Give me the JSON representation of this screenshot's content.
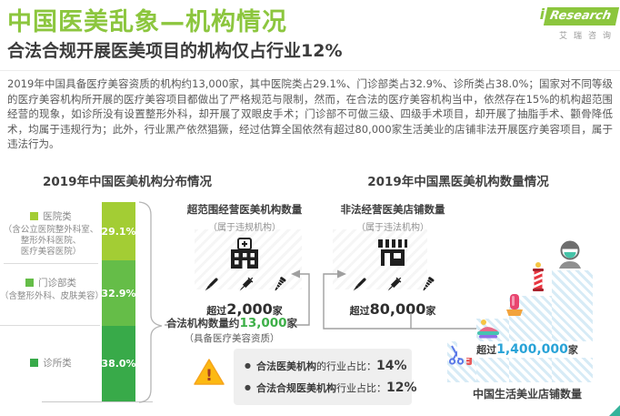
{
  "colors": {
    "accent_green": "#8cc63e",
    "highlight_green": "#3eb049",
    "highlight_blue": "#29a3d7",
    "connector_gray": "#9f9f9f",
    "warning_yellow": "#fcb912"
  },
  "header": {
    "title": "中国医美乱象—机构情况",
    "subtitle": "合法合规开展医美项目的机构仅占行业12%"
  },
  "logo": {
    "i": "i",
    "brand": "Research",
    "cn": "艾瑞咨询"
  },
  "intro": {
    "paragraph": "2019年中国具备医疗美容资质的机构约13,000家，其中医院类占29.1%、门诊部类占32.9%、诊所类占38.0%；国家对不同等级的医疗美容机构所开展的医疗美容项目都做出了严格规范与限制，然而，在合法的医疗美容机构当中，依然存在15%的机构超范围经营的现象，如诊所没有设置整形外科，却开展了双眼皮手术；门诊部不可做三级、四级手术项目，却开展了抽脂手术、颧骨降低术，均属于违规行为；此外，行业黑产依然猖獗，经过估算全国依然有超过80,000家生活美业的店铺非法开展医疗美容项目，属于违法行为。"
  },
  "left_section": {
    "heading": "2019年中国医美机构分布情况",
    "legend": [
      {
        "label": "医院类",
        "note": "（含公立医院整外科室、\n整形外科医院、\n医疗美容医院）"
      },
      {
        "label": "门诊部类",
        "note": "（含整形外科、皮肤美容）"
      },
      {
        "label": "诊所类",
        "note": ""
      }
    ],
    "legal_total": {
      "prefix": "合法机构数量约",
      "number": "13,000",
      "suffix": "家",
      "sub": "（具备医疗美容资质）"
    }
  },
  "middle_section": {
    "violation": {
      "title": "超范围经营医美机构数量",
      "sub": "（属于违规机构）",
      "count_prefix": "超过",
      "count": "2,000",
      "count_suffix": "家"
    },
    "illegal": {
      "title": "非法经营医美店铺数量",
      "sub": "（属于违法机构）",
      "count_prefix": "超过",
      "count": "80,000",
      "count_suffix": "家"
    },
    "note": {
      "bullet": "●",
      "line1_bold": "合法医美机构",
      "line1_text": "的行业占比：",
      "line1_value": "14%",
      "line2_bold": "合法合规医美机构",
      "line2_text": "行业占比：",
      "line2_value": "12%"
    }
  },
  "right_section": {
    "heading": "2019年中国黑医美机构数量情况",
    "life_beauty": {
      "count_prefix": "超过",
      "count": "1,400,000",
      "count_suffix": "家",
      "caption": "中国生活美业店铺数量"
    }
  },
  "chart_data": {
    "type": "bar",
    "subtype": "stacked_single_column",
    "title": "2019年中国医美机构分布情况",
    "categories": [
      "医院类（含公立医院整外科室、整形外科医院、医疗美容医院）",
      "门诊部类（含整形外科、皮肤美容）",
      "诊所类"
    ],
    "values": [
      29.1,
      32.9,
      38.0
    ],
    "display_values": [
      "29.1%",
      "32.9%",
      "38.0%"
    ],
    "unit": "percent",
    "colors": [
      "#a3cd34",
      "#65bd48",
      "#38aa49"
    ],
    "legend_position": "left",
    "annotations": [
      {
        "label": "合法机构数量（具备医疗美容资质）",
        "value": "约13,000家"
      },
      {
        "label": "超范围经营医美机构数量（属于违规机构）",
        "value": "超过2,000家"
      },
      {
        "label": "非法经营医美店铺数量（属于违法机构）",
        "value": "超过80,000家"
      },
      {
        "label": "中国生活美业店铺数量",
        "value": "超过1,400,000家"
      },
      {
        "label": "合法医美机构的行业占比",
        "value": "14%"
      },
      {
        "label": "合法合规医美机构行业占比",
        "value": "12%"
      }
    ]
  }
}
